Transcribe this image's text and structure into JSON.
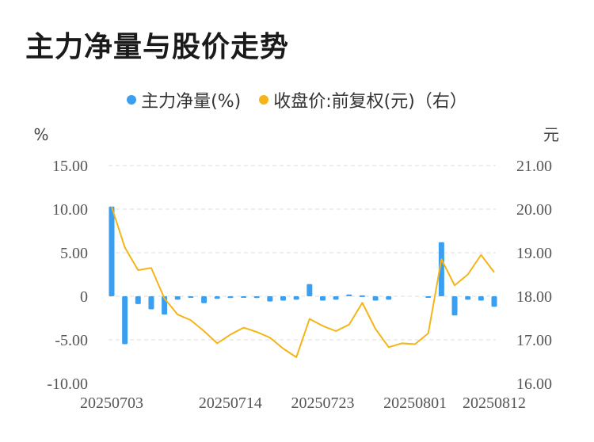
{
  "title": "主力净量与股价走势",
  "legend": {
    "bar_label": "主力净量(%)",
    "line_label": "收盘价:前复权(元)（右）"
  },
  "axes": {
    "left_unit": "%",
    "right_unit": "元"
  },
  "colors": {
    "bar": "#3a9ff0",
    "line": "#f5b417",
    "grid": "#dddddd"
  },
  "chart_data": {
    "type": "bar",
    "x_tick_labels": [
      "20250703",
      "20250714",
      "20250723",
      "20250801",
      "20250812"
    ],
    "left_axis": {
      "ylim": [
        -10,
        15
      ],
      "ticks": [
        "15.00",
        "10.00",
        "5.00",
        "0",
        "-5.00",
        "-10.00"
      ],
      "tick_values": [
        15,
        10,
        5,
        0,
        -5,
        -10
      ]
    },
    "right_axis": {
      "ylim": [
        16,
        21
      ],
      "ticks": [
        "21.00",
        "20.00",
        "19.00",
        "18.00",
        "17.00",
        "16.00"
      ],
      "tick_values": [
        21,
        20,
        19,
        18,
        17,
        16
      ]
    },
    "grid": true,
    "legend_position": "top",
    "series": [
      {
        "name": "主力净量(%)",
        "type": "bar",
        "axis": "left",
        "values": [
          10.3,
          -5.5,
          -0.9,
          -1.5,
          -2.1,
          -0.4,
          -0.1,
          -0.8,
          -0.3,
          -0.2,
          -0.1,
          -0.2,
          -0.6,
          -0.5,
          -0.4,
          1.4,
          -0.5,
          -0.4,
          0.2,
          0.1,
          -0.5,
          -0.4,
          0.0,
          0.0,
          -0.1,
          6.2,
          -2.2,
          -0.4,
          -0.5,
          -1.2
        ]
      },
      {
        "name": "收盘价:前复权(元)（右）",
        "type": "line",
        "axis": "right",
        "values": [
          20.05,
          19.12,
          18.6,
          18.65,
          17.95,
          17.58,
          17.45,
          17.2,
          16.92,
          17.12,
          17.28,
          17.18,
          17.05,
          16.8,
          16.6,
          17.48,
          17.32,
          17.2,
          17.35,
          17.85,
          17.25,
          16.83,
          16.92,
          16.9,
          17.15,
          18.85,
          18.25,
          18.5,
          18.95,
          18.55
        ]
      }
    ]
  }
}
